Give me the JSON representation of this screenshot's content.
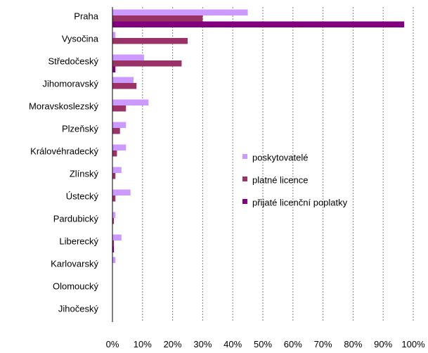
{
  "chart_data": {
    "type": "bar",
    "orientation": "horizontal",
    "categories": [
      "Praha",
      "Vysočina",
      "Středočeský",
      "Jihomoravský",
      "Moravskoslezský",
      "Plzeňský",
      "Královéhradecký",
      "Zlínský",
      "Ústecký",
      "Pardubický",
      "Liberecký",
      "Karlovarský",
      "Olomoucký",
      "Jihočeský"
    ],
    "series": [
      {
        "name": "poskytovatelé",
        "color": "#cc99ff",
        "values": [
          45,
          1,
          10.5,
          7,
          12,
          4.5,
          4.5,
          3,
          6,
          1,
          3,
          1,
          0,
          0
        ]
      },
      {
        "name": "platné licence",
        "color": "#993366",
        "values": [
          30,
          25,
          23,
          8,
          4.5,
          2.5,
          1.5,
          1,
          1,
          0.5,
          0.5,
          0,
          0,
          0
        ]
      },
      {
        "name": "přijaté licenční poplatky",
        "color": "#800080",
        "values": [
          97,
          0,
          1,
          0,
          0,
          0,
          0,
          0,
          0,
          0,
          0.5,
          0,
          0,
          0
        ]
      }
    ],
    "xlim": [
      0,
      100
    ],
    "xticks": [
      "0%",
      "10%",
      "20%",
      "30%",
      "40%",
      "50%",
      "60%",
      "70%",
      "80%",
      "90%",
      "100%"
    ],
    "grid": "vertical dashed",
    "legend_position": "right-middle"
  }
}
